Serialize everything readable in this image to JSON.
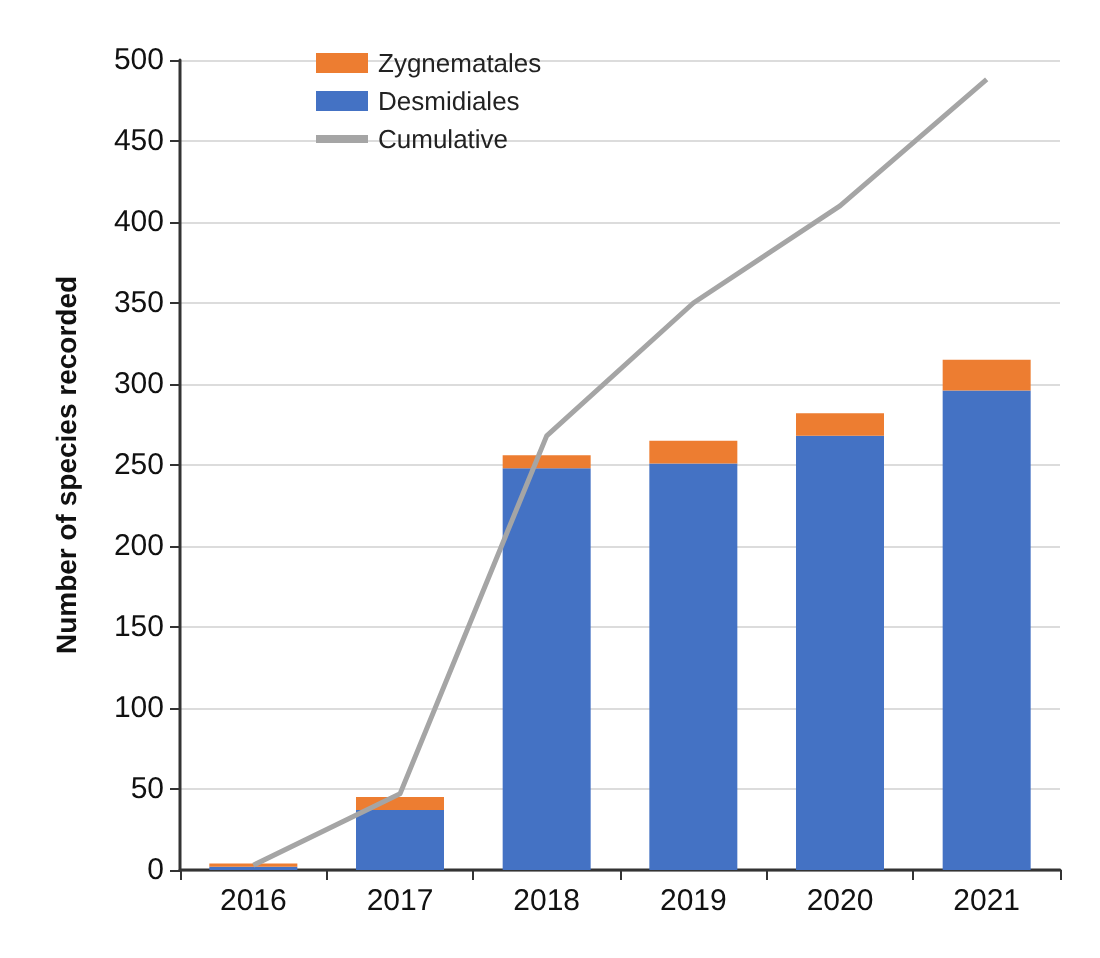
{
  "chart_data": {
    "type": "bar",
    "ylabel": "Number of species recorded",
    "categories": [
      "2016",
      "2017",
      "2018",
      "2019",
      "2020",
      "2021"
    ],
    "stacked": true,
    "series": [
      {
        "name": "Desmidiales",
        "color": "#4472c4",
        "values": [
          2,
          37,
          248,
          251,
          268,
          296
        ]
      },
      {
        "name": "Zygnematales",
        "color": "#ed7d31",
        "values": [
          2,
          8,
          8,
          14,
          14,
          19
        ]
      },
      {
        "name": "Cumulative",
        "type": "line",
        "color": "#a5a5a5",
        "values": [
          3,
          47,
          268,
          350,
          410,
          488
        ]
      }
    ],
    "ylim": [
      0,
      500
    ],
    "yticks": [
      0,
      50,
      100,
      150,
      200,
      250,
      300,
      350,
      400,
      450,
      500
    ],
    "grid": "y",
    "legend": "top left",
    "marker": "none"
  }
}
